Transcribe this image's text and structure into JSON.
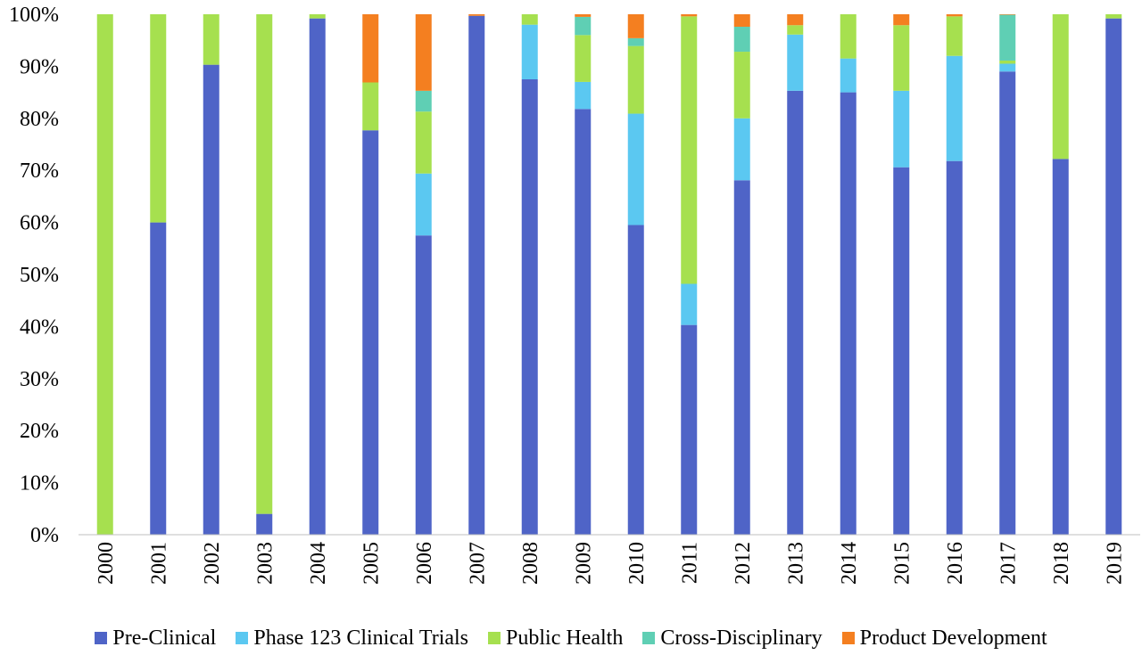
{
  "chart_data": {
    "type": "bar",
    "stacked": true,
    "categories": [
      "2000",
      "2001",
      "2002",
      "2003",
      "2004",
      "2005",
      "2006",
      "2007",
      "2008",
      "2009",
      "2010",
      "2011",
      "2012",
      "2013",
      "2014",
      "2015",
      "2016",
      "2017",
      "2018",
      "2019"
    ],
    "series": [
      {
        "name": "Pre-Clinical",
        "color": "#4f64c7",
        "values": [
          0,
          60,
          90.3,
          4,
          99.2,
          77.7,
          57.5,
          99.7,
          87.5,
          81.8,
          59.5,
          40.3,
          68.1,
          85.3,
          85,
          70.6,
          71.8,
          89,
          72.2,
          99.2
        ]
      },
      {
        "name": "Phase 123 Clinical Trials",
        "color": "#5bc8f1",
        "values": [
          0,
          0,
          0,
          0,
          0,
          0,
          11.9,
          0,
          10.5,
          5.2,
          21.4,
          7.9,
          11.9,
          10.8,
          6.5,
          14.7,
          20.2,
          1.5,
          0,
          0
        ]
      },
      {
        "name": "Public Health",
        "color": "#a6e04f",
        "values": [
          100,
          40,
          9.7,
          96,
          0.8,
          9.2,
          11.9,
          0,
          2,
          9,
          13,
          51.4,
          12.8,
          1.8,
          8.5,
          12.6,
          7.6,
          0.6,
          27.8,
          0.8
        ]
      },
      {
        "name": "Cross-Disciplinary",
        "color": "#5fcfb4",
        "values": [
          0,
          0,
          0,
          0,
          0,
          0,
          4,
          0,
          0,
          3.5,
          1.5,
          0,
          4.8,
          0,
          0,
          0,
          0,
          8.8,
          0,
          0
        ]
      },
      {
        "name": "Product Development",
        "color": "#f47f20",
        "values": [
          0,
          0,
          0,
          0,
          0,
          13.1,
          14.7,
          0.3,
          0,
          0.5,
          4.6,
          0.4,
          2.4,
          2.1,
          0,
          2.1,
          0.4,
          0.1,
          0,
          0
        ]
      }
    ],
    "yticks": [
      "0%",
      "10%",
      "20%",
      "30%",
      "40%",
      "50%",
      "60%",
      "70%",
      "80%",
      "90%",
      "100%"
    ],
    "ylim": [
      0,
      100
    ],
    "grid": false,
    "legend_position": "bottom",
    "title": "",
    "xlabel": "",
    "ylabel": ""
  }
}
